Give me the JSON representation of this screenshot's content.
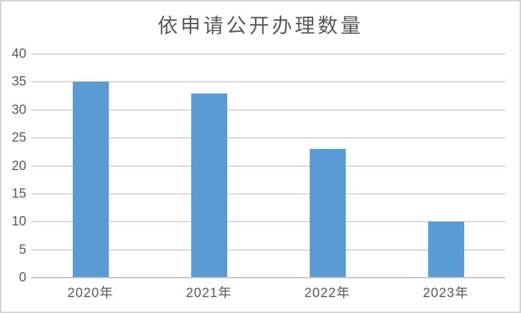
{
  "chart_data": {
    "type": "bar",
    "title": "依申请公开办理数量",
    "categories": [
      "2020年",
      "2021年",
      "2022年",
      "2023年"
    ],
    "values": [
      35,
      33,
      23,
      10
    ],
    "xlabel": "",
    "ylabel": "",
    "ylim": [
      0,
      40
    ],
    "ytick_step": 5,
    "yticks": [
      0,
      5,
      10,
      15,
      20,
      25,
      30,
      35,
      40
    ],
    "grid": "horizontal",
    "legend_position": "none",
    "colors": {
      "bar": "#5B9BD5",
      "gridline": "#D9D9D9",
      "axis_line": "#C6C6C6",
      "text": "#595959",
      "border": "#D4D4D4",
      "background": "#FFFFFF"
    }
  }
}
